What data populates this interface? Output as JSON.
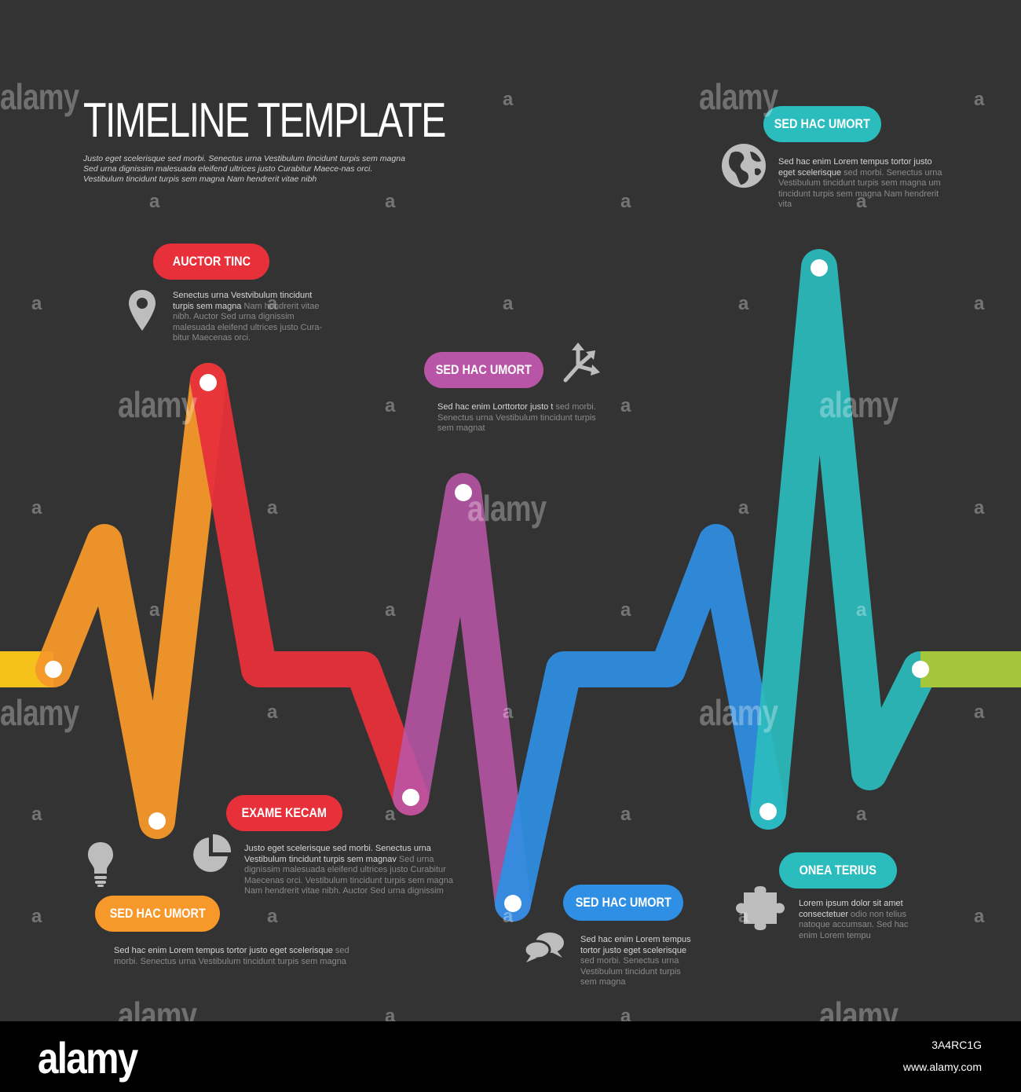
{
  "title": "TIMELINE TEMPLATE",
  "subtitle": "Justo eget scelerisque sed morbi. Senectus urna Vestibulum tincidunt turpis sem magna  Sed urna dignissim malesuada eleifend ultrices justo Curabitur Maece-nas orci. Vestibulum tincidunt turpis sem magna Nam hendrerit vitae nibh",
  "colors": {
    "background": "#333333",
    "yellow": "#f5c21b",
    "orange": "#f6982a",
    "red": "#e8303a",
    "purple": "#b955a6",
    "blue": "#2f8fe4",
    "teal": "#2bbcbe",
    "green": "#a5c63b"
  },
  "milestones": [
    {
      "label": "AUCTOR TINC",
      "color": "#e8303a",
      "icon": "map-pin-icon",
      "text_hi": "Senectus urna Vestvibulum tincidunt turpis sem magna",
      "text_lo": " Nam hendrerit vitae nibh. Auctor Sed urna dignissim malesuada eleifend ultrices justo Cura-bitur Maecenas orci."
    },
    {
      "label": "SED HAC UMORT",
      "color": "#b955a6",
      "icon": "arrows-split-icon",
      "text_hi": "Sed hac enim Lorttortor justo t",
      "text_lo": " sed morbi. Senectus urna Vestibulum tincidunt turpis sem magnat"
    },
    {
      "label": "SED HAC UMORT",
      "color": "#2bbcbe",
      "icon": "globe-icon",
      "text_hi": "Sed hac enim Lorem tempus tortor justo eget scelerisque",
      "text_lo": " sed morbi. Senectus urna Vestibulum tincidunt turpis sem magna um tincidunt turpis sem magna Nam hendrerit vita"
    },
    {
      "label": "EXAME KECAM",
      "color": "#e8303a",
      "icon": "pie-chart-icon",
      "text_hi": "Justo eget scelerisque sed morbi. Senectus urna Vestibulum tincidunt turpis sem magnav",
      "text_lo": " Sed urna dignissim malesuada eleifend ultrices justo Curabitur Maecenas orci. Vestibulum tincidunt turpis sem magna Nam hendrerit vitae nibh. Auctor Sed urna dignissim"
    },
    {
      "label": "SED HAC UMORT",
      "color": "#f6982a",
      "icon": "lightbulb-icon",
      "text_hi": "Sed hac enim Lorem tempus tortor justo eget scelerisque",
      "text_lo": " sed morbi. Senectus urna Vestibulum tincidunt turpis sem magna"
    },
    {
      "label": "SED HAC UMORT",
      "color": "#2f8fe4",
      "icon": "chat-bubbles-icon",
      "text_hi": "Sed hac enim Lorem tempus tortor justo eget scelerisque",
      "text_lo": " sed morbi. Senectus urna Vestibulum tincidunt turpis sem magna"
    },
    {
      "label": "ONEA TERIUS",
      "color": "#2bbcbe",
      "icon": "puzzle-icon",
      "text_hi": "Lorem ipsum dolor sit amet consectetuer",
      "text_lo": " odio non telius natoque accumsan. Sed hac enim Lorem tempu"
    }
  ],
  "watermark": {
    "text": "alamy",
    "short": "a"
  },
  "footer": {
    "logo": "alamy",
    "code": "3A4RC1G",
    "url": "www.alamy.com"
  }
}
